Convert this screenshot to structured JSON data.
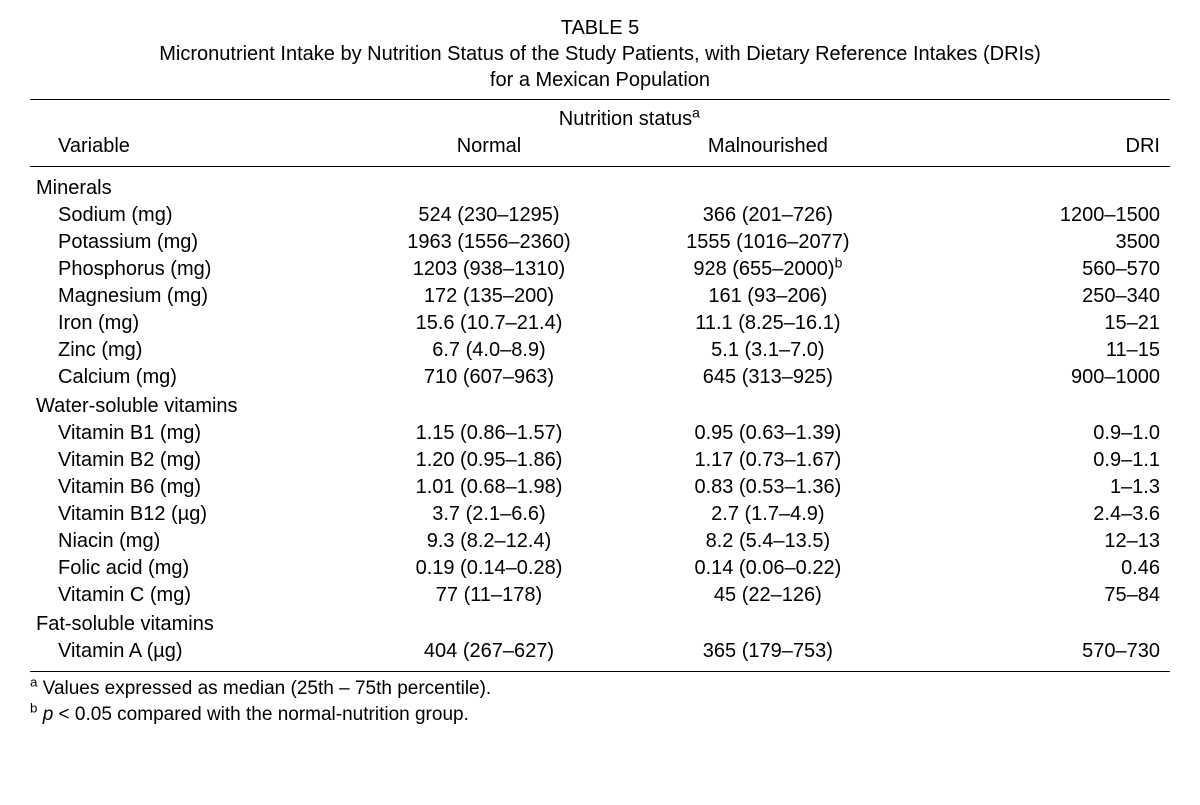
{
  "caption": {
    "number": "TABLE 5",
    "title_line1": "Micronutrient Intake by Nutrition Status of the Study Patients, with Dietary Reference Intakes (DRIs)",
    "title_line2": "for a Mexican Population"
  },
  "headers": {
    "variable": "Variable",
    "span_label": "Nutrition status",
    "span_sup": "a",
    "normal": "Normal",
    "malnourished": "Malnourished",
    "dri": "DRI"
  },
  "sections": [
    {
      "name": "Minerals",
      "rows": [
        {
          "variable": "Sodium (mg)",
          "normal": "524 (230–1295)",
          "mal": "366 (201–726)",
          "mal_sup": "",
          "dri": "1200–1500"
        },
        {
          "variable": "Potassium (mg)",
          "normal": "1963 (1556–2360)",
          "mal": "1555 (1016–2077)",
          "mal_sup": "",
          "dri": "3500"
        },
        {
          "variable": "Phosphorus (mg)",
          "normal": "1203 (938–1310)",
          "mal": "928 (655–2000)",
          "mal_sup": "b",
          "dri": "560–570"
        },
        {
          "variable": "Magnesium (mg)",
          "normal": "172 (135–200)",
          "mal": "161 (93–206)",
          "mal_sup": "",
          "dri": "250–340"
        },
        {
          "variable": "Iron (mg)",
          "normal": "15.6 (10.7–21.4)",
          "mal": "11.1 (8.25–16.1)",
          "mal_sup": "",
          "dri": "15–21"
        },
        {
          "variable": "Zinc (mg)",
          "normal": "6.7 (4.0–8.9)",
          "mal": "5.1 (3.1–7.0)",
          "mal_sup": "",
          "dri": "11–15"
        },
        {
          "variable": "Calcium (mg)",
          "normal": "710 (607–963)",
          "mal": "645 (313–925)",
          "mal_sup": "",
          "dri": "900–1000"
        }
      ]
    },
    {
      "name": "Water-soluble vitamins",
      "rows": [
        {
          "variable": "Vitamin B1 (mg)",
          "normal": "1.15 (0.86–1.57)",
          "mal": "0.95 (0.63–1.39)",
          "mal_sup": "",
          "dri": "0.9–1.0"
        },
        {
          "variable": "Vitamin B2 (mg)",
          "normal": "1.20 (0.95–1.86)",
          "mal": "1.17 (0.73–1.67)",
          "mal_sup": "",
          "dri": "0.9–1.1"
        },
        {
          "variable": "Vitamin B6 (mg)",
          "normal": "1.01 (0.68–1.98)",
          "mal": "0.83 (0.53–1.36)",
          "mal_sup": "",
          "dri": "1–1.3"
        },
        {
          "variable": "Vitamin B12 (µg)",
          "normal": "3.7 (2.1–6.6)",
          "mal": "2.7 (1.7–4.9)",
          "mal_sup": "",
          "dri": "2.4–3.6"
        },
        {
          "variable": "Niacin (mg)",
          "normal": "9.3 (8.2–12.4)",
          "mal": "8.2 (5.4–13.5)",
          "mal_sup": "",
          "dri": "12–13"
        },
        {
          "variable": "Folic acid (mg)",
          "normal": "0.19 (0.14–0.28)",
          "mal": "0.14 (0.06–0.22)",
          "mal_sup": "",
          "dri": "0.46"
        },
        {
          "variable": "Vitamin C (mg)",
          "normal": "77 (11–178)",
          "mal": "45 (22–126)",
          "mal_sup": "",
          "dri": "75–84"
        }
      ]
    },
    {
      "name": "Fat-soluble vitamins",
      "rows": [
        {
          "variable": "Vitamin A (µg)",
          "normal": "404 (267–627)",
          "mal": "365 (179–753)",
          "mal_sup": "",
          "dri": "570–730"
        }
      ]
    }
  ],
  "footnotes": {
    "a_sup": "a",
    "a_text": " Values expressed as median (25th – 75th percentile).",
    "b_sup": "b",
    "b_prefix": " ",
    "b_italic": "p",
    "b_text": " < 0.05 compared with the normal-nutrition group."
  },
  "style": {
    "font_color": "#000000",
    "background": "#ffffff",
    "rule_color": "#000000"
  }
}
